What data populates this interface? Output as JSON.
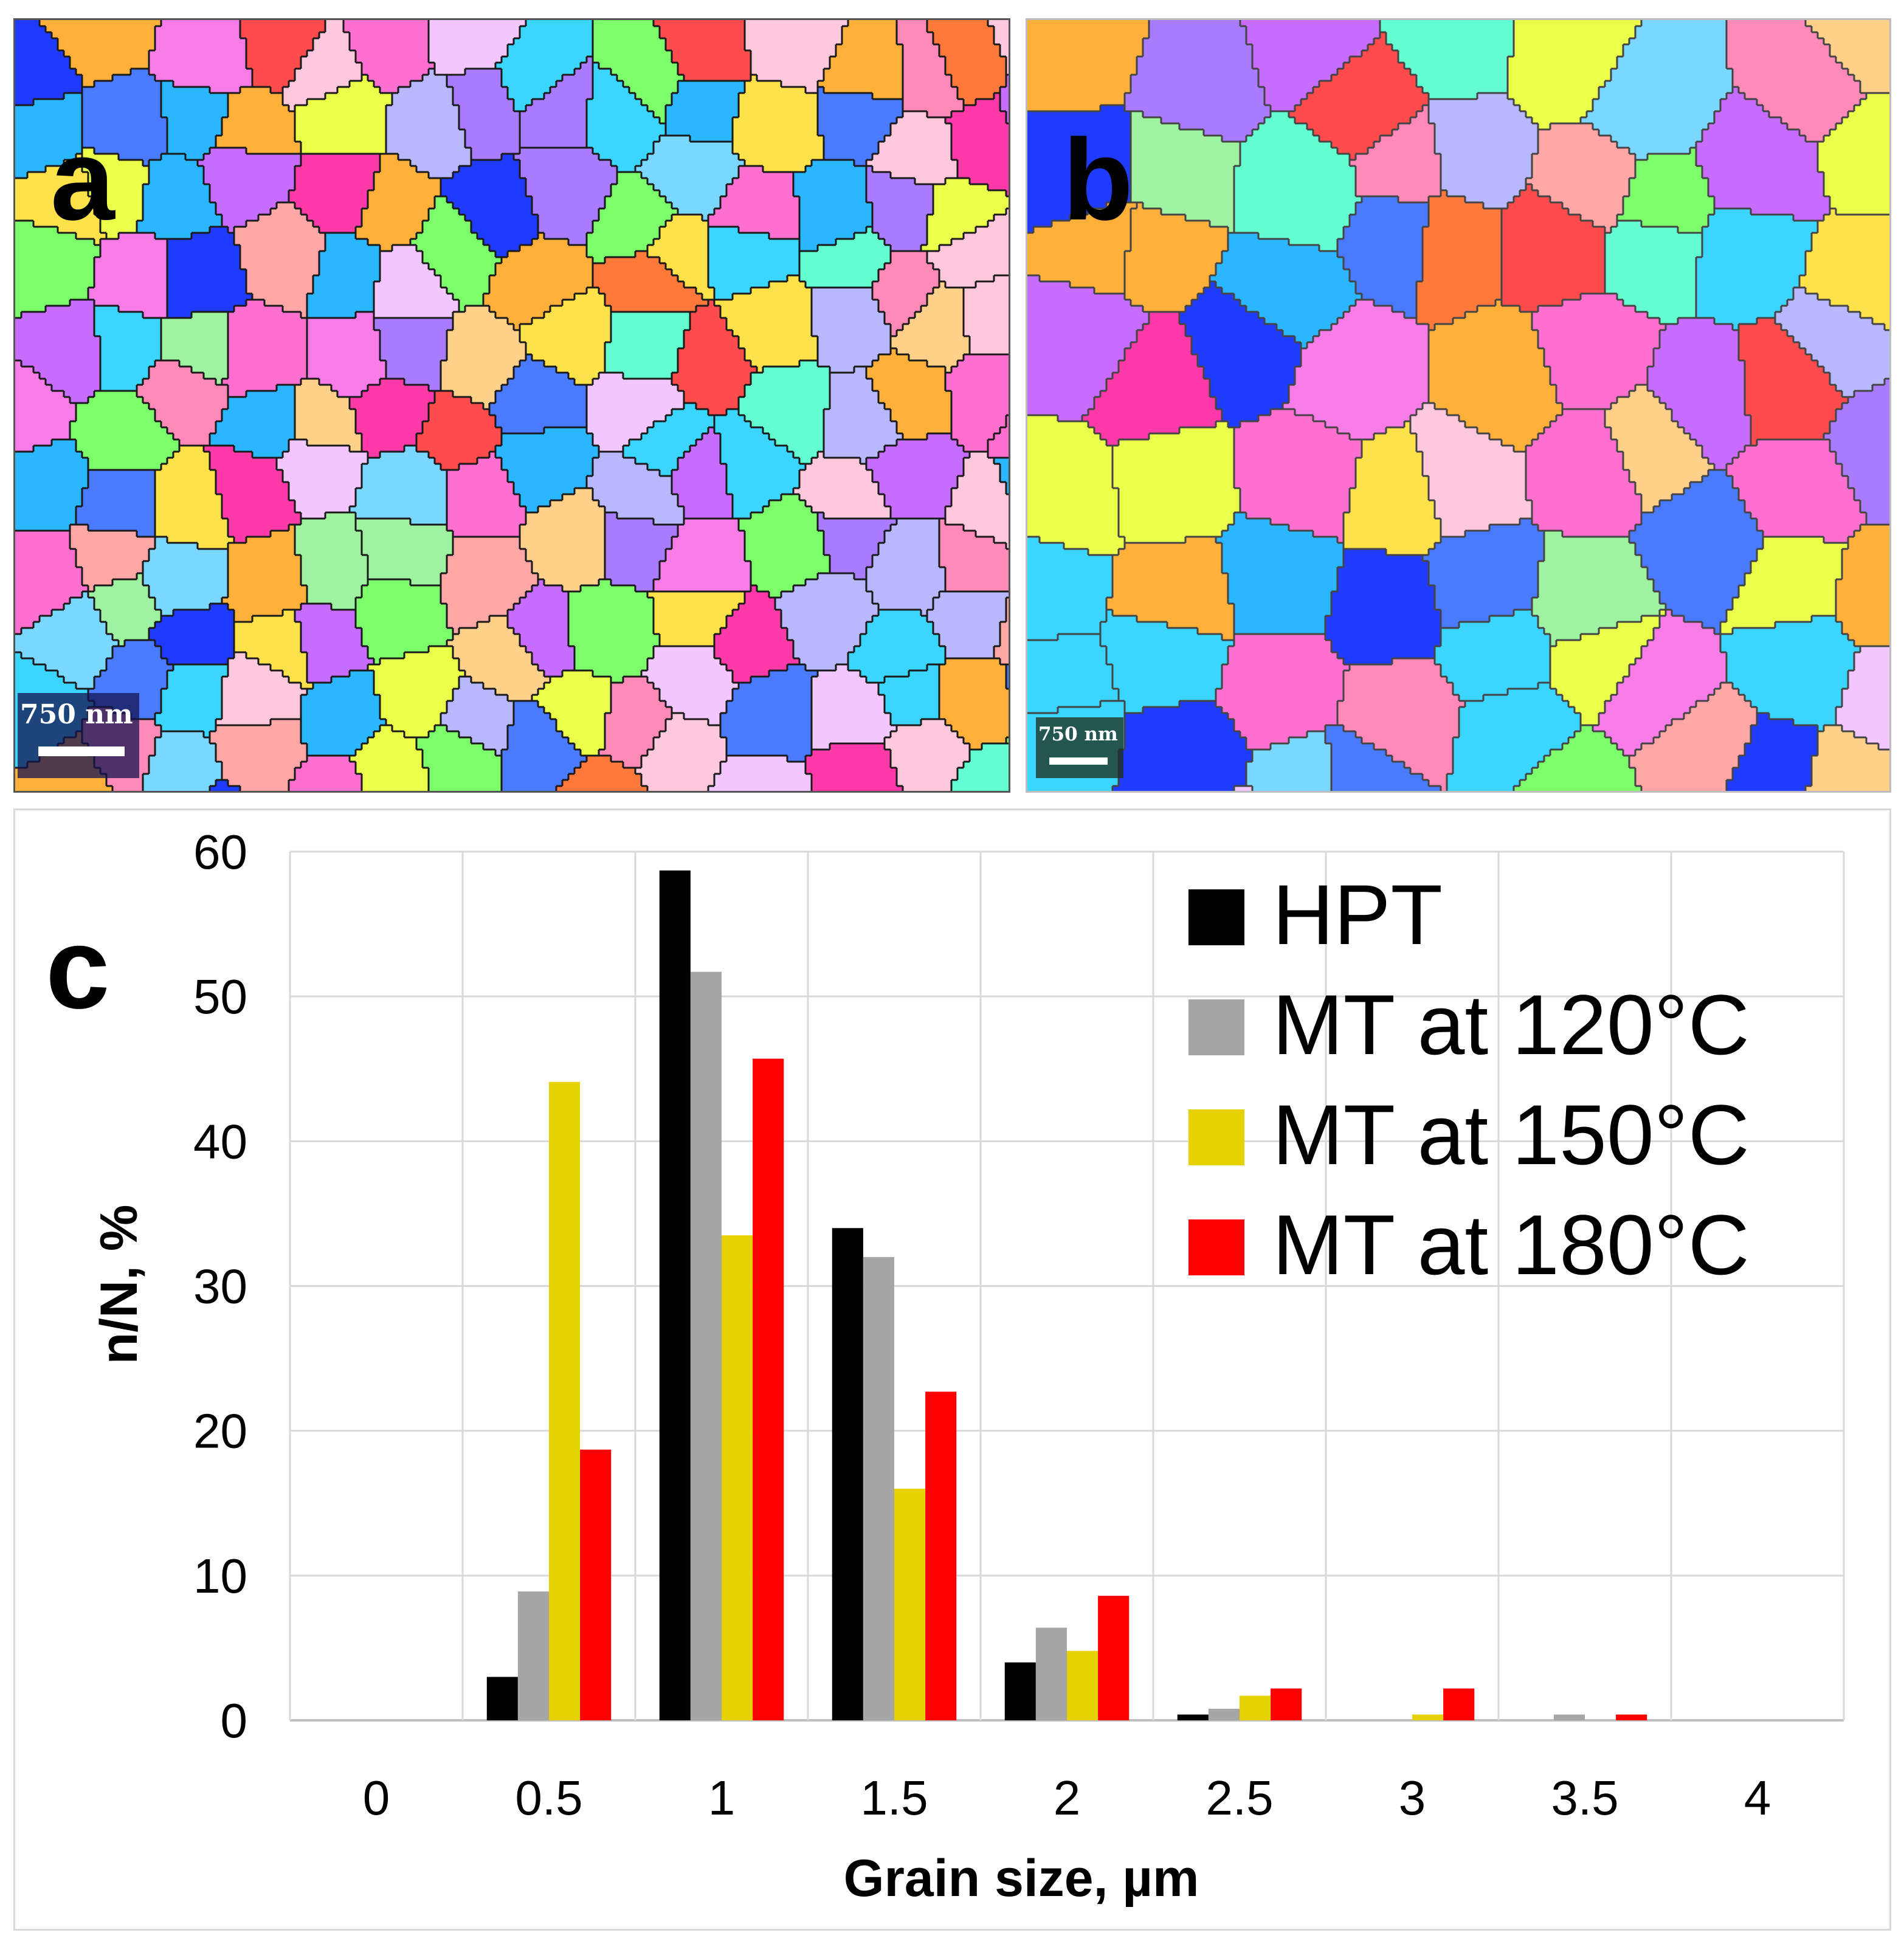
{
  "panels": {
    "a": {
      "letter": "a",
      "scale_label": "750 nm"
    },
    "b": {
      "letter": "b",
      "scale_label": "750 nm"
    },
    "c": {
      "letter": "c"
    }
  },
  "colors": {
    "HPT": "#000000",
    "MT at 120°C": "#a6a6a6",
    "MT at 150°C": "#e6d200",
    "MT at 180°C": "#ff0000",
    "gridline": "#d9d9d9",
    "baseline": "#bfbfbf"
  },
  "chart_data": {
    "type": "bar",
    "title": "",
    "xlabel": "Grain size, µm",
    "ylabel": "n/N, %",
    "ylim": [
      0,
      60
    ],
    "yticks": [
      0,
      10,
      20,
      30,
      40,
      50,
      60
    ],
    "grid": true,
    "legend_position": "top-right",
    "categories": [
      "0",
      "0.5",
      "1",
      "1.5",
      "2",
      "2.5",
      "3",
      "3.5",
      "4"
    ],
    "series": [
      {
        "name": "HPT",
        "values": [
          0,
          3,
          58.7,
          34,
          4,
          0.4,
          0,
          0,
          0
        ]
      },
      {
        "name": "MT at 120°C",
        "values": [
          0,
          8.9,
          51.7,
          32,
          6.4,
          0.8,
          0,
          0.4,
          0
        ]
      },
      {
        "name": "MT at 150°C",
        "values": [
          0,
          44.1,
          33.5,
          16,
          4.8,
          1.7,
          0.4,
          0,
          0
        ]
      },
      {
        "name": "MT at 180°C",
        "values": [
          0,
          18.7,
          45.7,
          22.7,
          8.6,
          2.2,
          2.2,
          0.4,
          0
        ]
      }
    ]
  }
}
